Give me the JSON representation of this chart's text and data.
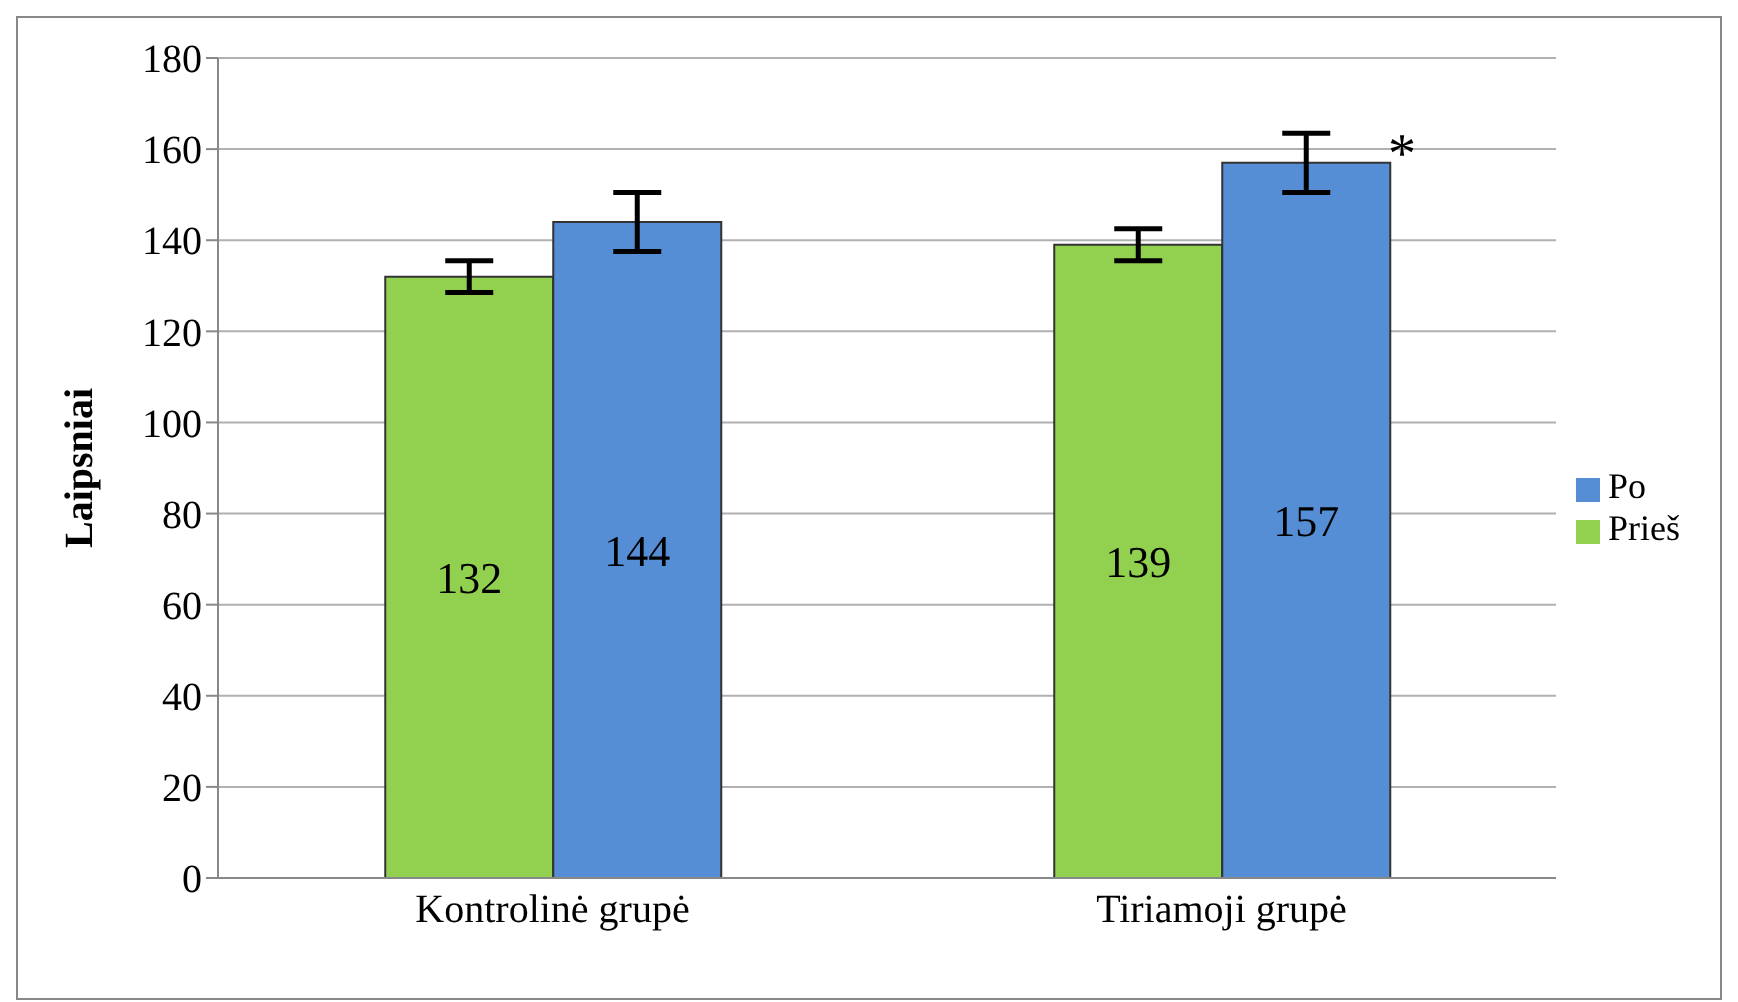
{
  "chart_data": {
    "type": "bar",
    "categories": [
      "Kontrolinė grupė",
      "Tiriamoji grupė"
    ],
    "series": [
      {
        "name": "Prieš",
        "color": "#92d050",
        "values": [
          132,
          139
        ],
        "errors": [
          3.5,
          3.5
        ]
      },
      {
        "name": "Po",
        "color": "#558ed5",
        "values": [
          144,
          157
        ],
        "errors": [
          6.5,
          6.5
        ]
      }
    ],
    "ylabel": "Laipsniai",
    "ylim": [
      0,
      180
    ],
    "yticks": [
      0,
      20,
      40,
      60,
      80,
      100,
      120,
      140,
      160,
      180
    ],
    "grid": "y",
    "legend": "right",
    "data_labels": true,
    "annotations": [
      "*"
    ]
  }
}
